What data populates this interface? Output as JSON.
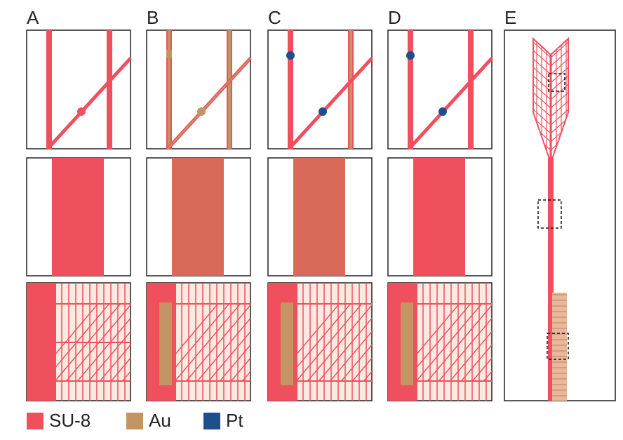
{
  "panels": [
    {
      "label": "A"
    },
    {
      "label": "B"
    },
    {
      "label": "C"
    },
    {
      "label": "D"
    },
    {
      "label": "E"
    }
  ],
  "legend": [
    {
      "label": "SU-8"
    },
    {
      "label": "Au"
    },
    {
      "label": "Pt"
    }
  ]
}
